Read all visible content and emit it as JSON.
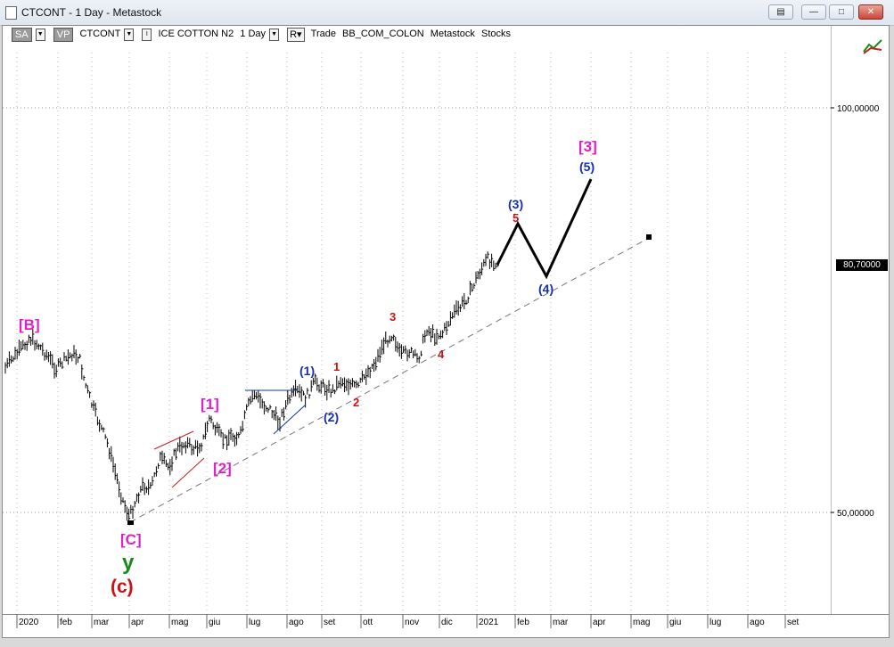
{
  "window": {
    "title": "CTCONT - 1 Day - Metastock",
    "help_icon": "help-icon",
    "minimize_icon": "minimize-icon",
    "maximize_icon": "maximize-icon",
    "close_icon": "close-icon"
  },
  "toolbar": {
    "sa": "SA",
    "vp": "VP",
    "symbol": "CTCONT",
    "name": "ICE COTTON N2",
    "period": "1 Day",
    "mode": "R",
    "trade": "Trade",
    "account": "BB_COM_COLON",
    "source": "Metastock",
    "type": "Stocks"
  },
  "price_axis": {
    "ticks": [
      "100,00000",
      "50,00000"
    ],
    "last_price": "80,70000"
  },
  "time_axis": {
    "labels": [
      "2020",
      "feb",
      "mar",
      "apr",
      "mag",
      "giu",
      "lug",
      "ago",
      "set",
      "ott",
      "nov",
      "dic",
      "2021",
      "feb",
      "mar",
      "apr",
      "mag",
      "giu",
      "lug",
      "ago",
      "set"
    ]
  },
  "wave_labels": {
    "B_major": "[B]",
    "C_major": "[C]",
    "y": "y",
    "c_paren": "(c)",
    "one_major": "[1]",
    "two_major": "[2]",
    "three_major": "[3]",
    "one_minor": "(1)",
    "two_minor": "(2)",
    "three_minor": "(3)",
    "four_minor": "(4)",
    "five_minor": "(5)",
    "r1": "1",
    "r2": "2",
    "r3": "3",
    "r4": "4",
    "r5": "5"
  },
  "colors": {
    "magenta": "#e020c8",
    "blue": "#1530b0",
    "red": "#d01010",
    "green": "#1a8a1a",
    "bars": "#000000",
    "last_price_bg": "#000000"
  }
}
